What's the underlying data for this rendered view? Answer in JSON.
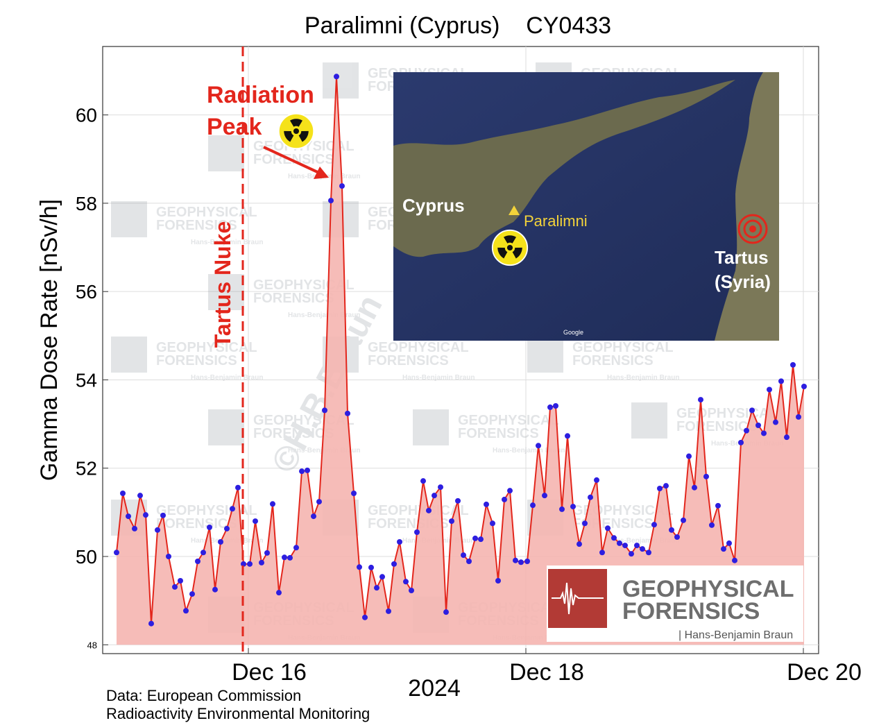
{
  "chart_data": {
    "type": "line",
    "title": "Paralimni (Cyprus)    CY0433",
    "ylabel": "Gamma Dose Rate [nSv/h]",
    "xlabel": "2024",
    "x": [
      15.05,
      15.095,
      15.135,
      15.18,
      15.22,
      15.26,
      15.3,
      15.345,
      15.385,
      15.425,
      15.47,
      15.51,
      15.55,
      15.595,
      15.635,
      15.675,
      15.72,
      15.76,
      15.8,
      15.845,
      15.885,
      15.925,
      15.965,
      16.01,
      16.05,
      16.095,
      16.135,
      16.175,
      16.22,
      16.26,
      16.3,
      16.345,
      16.385,
      16.425,
      16.47,
      16.51,
      16.55,
      16.595,
      16.635,
      16.675,
      16.715,
      16.76,
      16.8,
      16.84,
      16.885,
      16.925,
      16.965,
      17.01,
      17.05,
      17.09,
      17.135,
      17.175,
      17.215,
      17.26,
      17.3,
      17.34,
      17.385,
      17.425,
      17.465,
      17.51,
      17.55,
      17.59,
      17.635,
      17.675,
      17.715,
      17.76,
      17.8,
      17.845,
      17.885,
      17.925,
      17.965,
      18.01,
      18.05,
      18.09,
      18.135,
      18.175,
      18.215,
      18.26,
      18.3,
      18.34,
      18.385,
      18.425,
      18.465,
      18.51,
      18.55,
      18.59,
      18.635,
      18.675,
      18.715,
      18.76,
      18.8,
      18.84,
      18.885,
      18.925,
      18.965,
      19.01,
      19.05,
      19.09,
      19.135,
      19.175,
      19.215,
      19.26,
      19.3,
      19.34,
      19.385,
      19.425,
      19.465,
      19.505,
      19.55,
      19.59,
      19.63,
      19.675,
      19.715,
      19.755,
      19.8,
      19.84,
      19.88,
      19.925,
      19.965,
      20.005
    ],
    "values": [
      50.09,
      51.43,
      50.91,
      50.63,
      51.38,
      50.94,
      48.48,
      50.6,
      50.93,
      50.0,
      49.31,
      49.45,
      48.77,
      49.15,
      49.89,
      50.09,
      50.66,
      49.25,
      50.33,
      50.63,
      51.08,
      51.56,
      49.83,
      49.83,
      50.8,
      49.86,
      50.08,
      51.19,
      49.18,
      49.98,
      49.97,
      50.2,
      51.93,
      51.95,
      50.91,
      51.24,
      53.31,
      58.06,
      60.87,
      58.39,
      53.24,
      51.43,
      49.76,
      48.62,
      49.75,
      49.29,
      49.54,
      48.76,
      49.83,
      50.33,
      49.43,
      49.23,
      50.55,
      51.71,
      51.04,
      51.38,
      51.57,
      48.74,
      50.8,
      51.26,
      50.03,
      49.89,
      50.41,
      50.39,
      51.18,
      50.75,
      49.45,
      51.29,
      51.49,
      49.91,
      49.87,
      49.89,
      51.16,
      52.51,
      51.38,
      53.38,
      53.41,
      51.07,
      52.73,
      51.13,
      50.28,
      50.75,
      51.34,
      51.73,
      50.09,
      50.64,
      50.42,
      50.3,
      50.25,
      50.06,
      50.25,
      50.17,
      50.09,
      50.72,
      51.54,
      51.6,
      50.6,
      50.44,
      50.82,
      52.27,
      51.56,
      53.55,
      51.81,
      50.71,
      51.15,
      50.17,
      50.3,
      49.91,
      52.58,
      52.85,
      53.31,
      52.97,
      52.79,
      53.78,
      53.04,
      53.97,
      52.7,
      54.34,
      53.16,
      53.85
    ],
    "color": "#e3261c",
    "marker_color": "#2d1ee0",
    "fill_color": "#f5b5b0",
    "xlim": [
      14.95,
      20.11
    ],
    "ylim": [
      47.8,
      61.55
    ],
    "xticks": [
      {
        "value": 16,
        "label": "Dec 16"
      },
      {
        "value": 18,
        "label": "Dec 18"
      },
      {
        "value": 20,
        "label": "Dec 20"
      }
    ],
    "yticks": [
      48,
      50,
      52,
      54,
      56,
      58,
      60
    ],
    "grid": true,
    "annotations": {
      "event": {
        "text": "Tartus Nuke",
        "x": 15.96
      },
      "peak": {
        "lines": [
          "Radiation",
          "Peak"
        ]
      }
    },
    "source": [
      "Data: European Commission",
      "Radioactivity Environmental Monitoring"
    ]
  },
  "inset": {
    "labels": [
      "Cyprus",
      "Paralimni",
      "Tartus",
      "(Syria)",
      "Google"
    ]
  },
  "watermark": {
    "lines": [
      "GEOPHYSICAL",
      "FORENSICS"
    ],
    "author": "Hans-Benjamin Braun",
    "copyright": "©H.B.Braun"
  },
  "logo": {
    "lines": [
      "GEOPHYSICAL",
      "FORENSICS"
    ],
    "author": "| Hans-Benjamin Braun"
  }
}
